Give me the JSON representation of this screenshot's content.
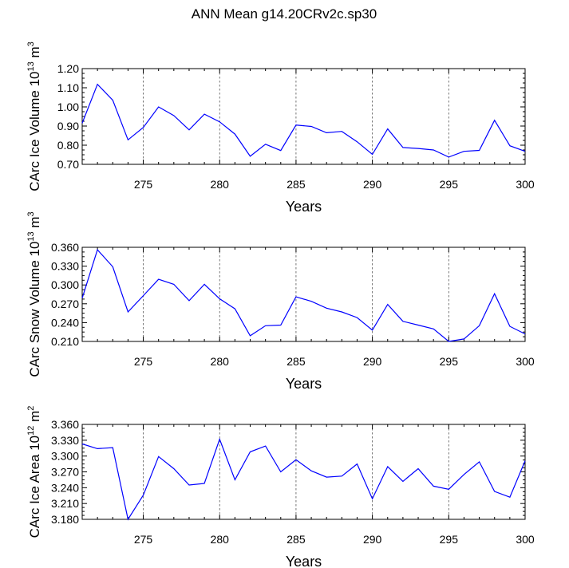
{
  "title": "ANN Mean g14.20CRv2c.sp30",
  "chart_data": [
    {
      "type": "line",
      "xlabel": "Years",
      "ylabel": {
        "text": "CArc Ice Volume 10",
        "exp": "13",
        "unit": " m",
        "unit_exp": "3"
      },
      "xlim": [
        271,
        300
      ],
      "ylim": [
        0.7,
        1.2
      ],
      "xticks": [
        275,
        280,
        285,
        290,
        295,
        300
      ],
      "yticks": [
        "0.70",
        "0.80",
        "0.90",
        "1.00",
        "1.10",
        "1.20"
      ],
      "grid_x": [
        275,
        280,
        285,
        290,
        295
      ],
      "color": "#0000ff",
      "x": [
        271,
        272,
        273,
        274,
        275,
        276,
        277,
        278,
        279,
        280,
        281,
        282,
        283,
        284,
        285,
        286,
        287,
        288,
        289,
        290,
        291,
        292,
        293,
        294,
        295,
        296,
        297,
        298,
        299,
        300
      ],
      "values": [
        0.915,
        1.118,
        1.035,
        0.828,
        0.893,
        1.0,
        0.955,
        0.88,
        0.962,
        0.922,
        0.858,
        0.742,
        0.805,
        0.772,
        0.905,
        0.898,
        0.865,
        0.872,
        0.818,
        0.752,
        0.885,
        0.788,
        0.783,
        0.775,
        0.738,
        0.768,
        0.773,
        0.93,
        0.797,
        0.768
      ]
    },
    {
      "type": "line",
      "xlabel": "Years",
      "ylabel": {
        "text": "CArc Snow Volume 10",
        "exp": "13",
        "unit": " m",
        "unit_exp": "3"
      },
      "xlim": [
        271,
        300
      ],
      "ylim": [
        0.21,
        0.36
      ],
      "xticks": [
        275,
        280,
        285,
        290,
        295,
        300
      ],
      "yticks": [
        "0.210",
        "0.240",
        "0.270",
        "0.300",
        "0.330",
        "0.360"
      ],
      "grid_x": [
        275,
        280,
        285,
        290,
        295
      ],
      "color": "#0000ff",
      "x": [
        271,
        272,
        273,
        274,
        275,
        276,
        277,
        278,
        279,
        280,
        281,
        282,
        283,
        284,
        285,
        286,
        287,
        288,
        289,
        290,
        291,
        292,
        293,
        294,
        295,
        296,
        297,
        298,
        299,
        300
      ],
      "values": [
        0.279,
        0.356,
        0.329,
        0.257,
        0.283,
        0.309,
        0.301,
        0.275,
        0.301,
        0.278,
        0.262,
        0.219,
        0.235,
        0.236,
        0.281,
        0.274,
        0.263,
        0.257,
        0.248,
        0.228,
        0.269,
        0.242,
        0.236,
        0.23,
        0.21,
        0.214,
        0.235,
        0.286,
        0.234,
        0.222
      ]
    },
    {
      "type": "line",
      "xlabel": "Years",
      "ylabel": {
        "text": "CArc Ice Area 10",
        "exp": "12",
        "unit": " m",
        "unit_exp": "2"
      },
      "xlim": [
        271,
        300
      ],
      "ylim": [
        3.18,
        3.36
      ],
      "xticks": [
        275,
        280,
        285,
        290,
        295,
        300
      ],
      "yticks": [
        "3.180",
        "3.210",
        "3.240",
        "3.270",
        "3.300",
        "3.330",
        "3.360"
      ],
      "grid_x": [
        275,
        280,
        285,
        290,
        295
      ],
      "color": "#0000ff",
      "x": [
        271,
        272,
        273,
        274,
        275,
        276,
        277,
        278,
        279,
        280,
        281,
        282,
        283,
        284,
        285,
        286,
        287,
        288,
        289,
        290,
        291,
        292,
        293,
        294,
        295,
        296,
        297,
        298,
        299,
        300
      ],
      "values": [
        3.323,
        3.314,
        3.316,
        3.18,
        3.226,
        3.299,
        3.276,
        3.245,
        3.248,
        3.332,
        3.255,
        3.308,
        3.319,
        3.27,
        3.293,
        3.272,
        3.26,
        3.262,
        3.285,
        3.219,
        3.28,
        3.252,
        3.276,
        3.243,
        3.237,
        3.265,
        3.289,
        3.233,
        3.222,
        3.291
      ]
    }
  ]
}
